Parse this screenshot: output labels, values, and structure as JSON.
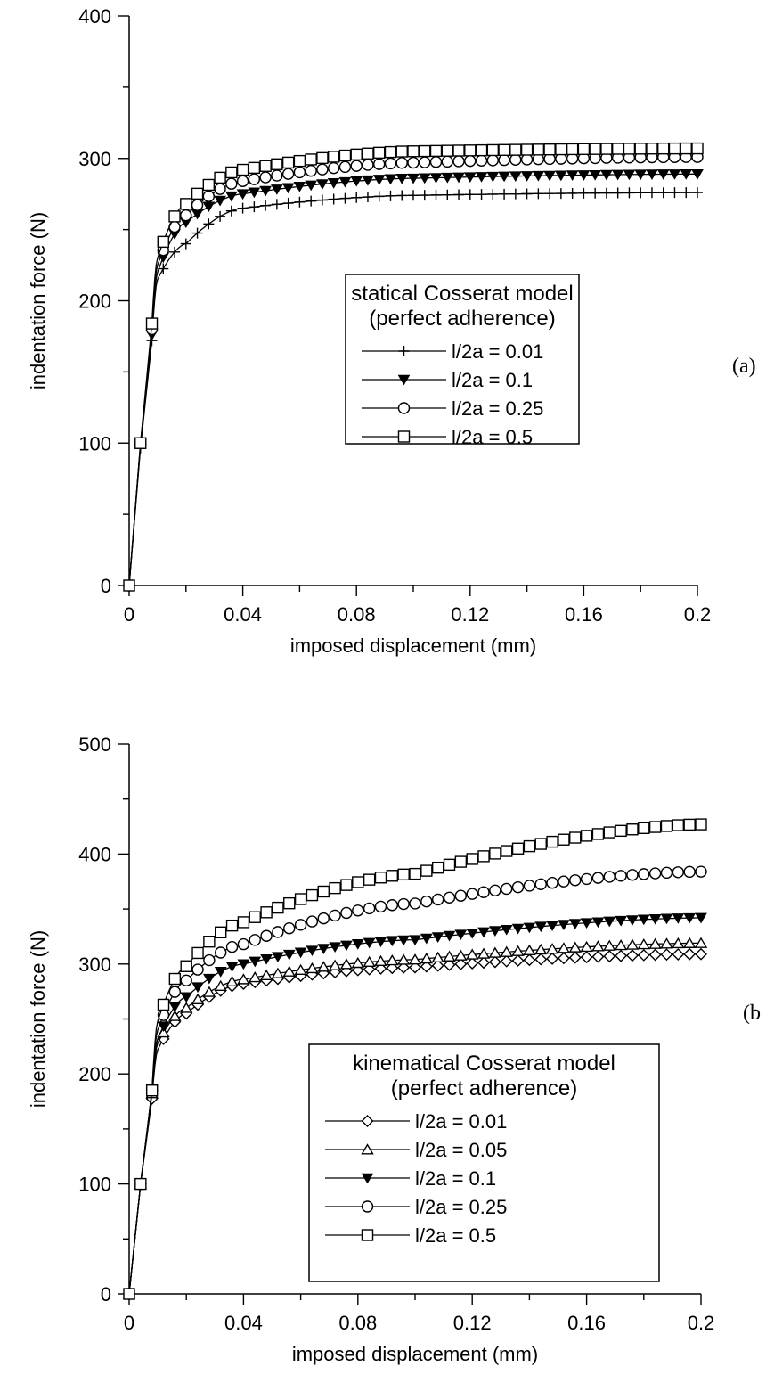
{
  "chart_data": [
    {
      "type": "line",
      "xlabel": "imposed displacement (mm)",
      "ylabel": "indentation force (N)",
      "xlim": [
        0,
        0.2
      ],
      "ylim": [
        0,
        400
      ],
      "xticks": [
        "0",
        "0.04",
        "0.08",
        "0.12",
        "0.16",
        "0.2"
      ],
      "yticks": [
        "0",
        "100",
        "200",
        "300",
        "400"
      ],
      "grid": false,
      "panel_label": "(a)",
      "legend": {
        "title_line1": "statical Cosserat model",
        "title_line2": "(perfect adherence)",
        "placement": "center-right"
      },
      "series": [
        {
          "name": "l/2a = 0.01",
          "marker": "plus",
          "asymptote": 276,
          "y_at_0.01": 215,
          "y_at_0.02": 240,
          "y_at_0.04": 265,
          "y_at_0.1": 274,
          "y_at_0.2": 276
        },
        {
          "name": "l/2a = 0.1",
          "marker": "triangle-down-filled",
          "asymptote": 289,
          "y_at_0.01": 220,
          "y_at_0.02": 255,
          "y_at_0.04": 275,
          "y_at_0.1": 286,
          "y_at_0.2": 289
        },
        {
          "name": "l/2a = 0.25",
          "marker": "circle",
          "asymptote": 301,
          "y_at_0.01": 225,
          "y_at_0.02": 260,
          "y_at_0.04": 284,
          "y_at_0.1": 297,
          "y_at_0.2": 301
        },
        {
          "name": "l/2a = 0.5",
          "marker": "square",
          "asymptote": 307,
          "y_at_0.01": 230,
          "y_at_0.02": 268,
          "y_at_0.04": 292,
          "y_at_0.1": 305,
          "y_at_0.2": 307
        }
      ]
    },
    {
      "type": "line",
      "xlabel": "imposed displacement (mm)",
      "ylabel": "indentation force (N)",
      "xlim": [
        0,
        0.2
      ],
      "ylim": [
        0,
        500
      ],
      "xticks": [
        "0",
        "0.04",
        "0.08",
        "0.12",
        "0.16",
        "0.2"
      ],
      "yticks": [
        "0",
        "100",
        "200",
        "300",
        "400",
        "500"
      ],
      "grid": false,
      "panel_label": "(b",
      "legend": {
        "title_line1": "kinematical Cosserat model",
        "title_line2": "(perfect adherence)",
        "placement": "center-right"
      },
      "series": [
        {
          "name": "l/2a = 0.01",
          "marker": "diamond",
          "y_at_0.01": 222,
          "y_at_0.02": 255,
          "y_at_0.04": 282,
          "y_at_0.1": 297,
          "y_at_0.2": 309
        },
        {
          "name": "l/2a = 0.05",
          "marker": "triangle-up",
          "y_at_0.01": 228,
          "y_at_0.02": 260,
          "y_at_0.04": 286,
          "y_at_0.1": 304,
          "y_at_0.2": 319
        },
        {
          "name": "l/2a = 0.1",
          "marker": "triangle-down-filled",
          "y_at_0.01": 232,
          "y_at_0.02": 270,
          "y_at_0.04": 300,
          "y_at_0.1": 322,
          "y_at_0.2": 342
        },
        {
          "name": "l/2a = 0.25",
          "marker": "circle",
          "y_at_0.01": 240,
          "y_at_0.02": 285,
          "y_at_0.04": 318,
          "y_at_0.1": 355,
          "y_at_0.2": 384
        },
        {
          "name": "l/2a = 0.5",
          "marker": "square",
          "y_at_0.01": 248,
          "y_at_0.02": 298,
          "y_at_0.04": 338,
          "y_at_0.1": 382,
          "y_at_0.2": 427
        }
      ]
    }
  ]
}
